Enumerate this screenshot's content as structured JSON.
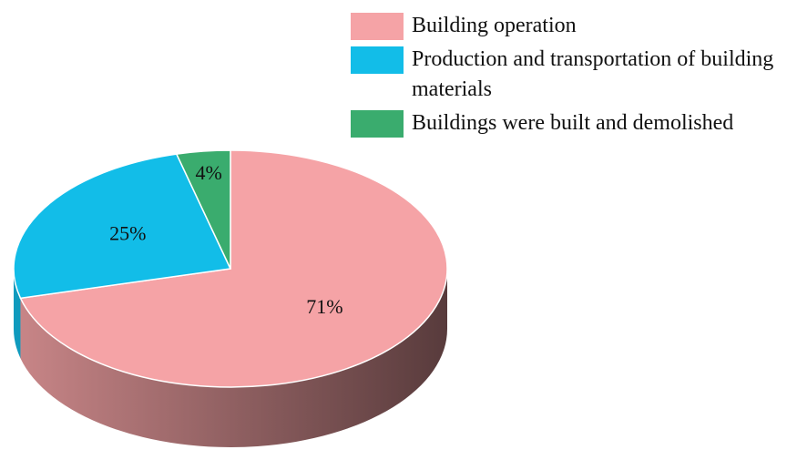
{
  "chart_data": {
    "type": "pie",
    "categories": [
      "Building operation",
      "Production and transportation of building materials",
      "Buildings were built and demolished"
    ],
    "values": [
      71,
      25,
      4
    ],
    "value_labels": [
      "71%",
      "25%",
      "4%"
    ],
    "colors": [
      "#f5a3a6",
      "#12bde8",
      "#3aac6e"
    ]
  }
}
